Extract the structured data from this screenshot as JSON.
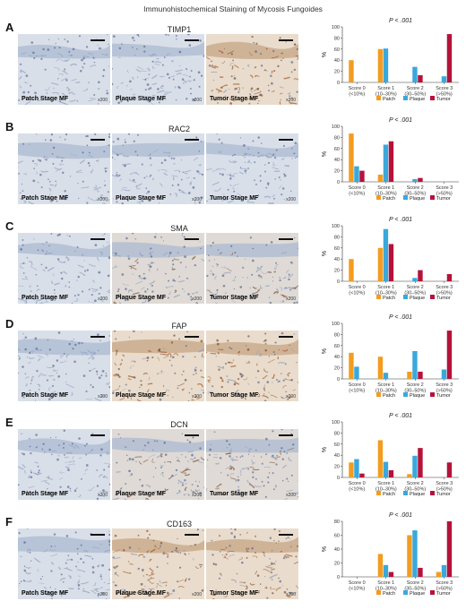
{
  "figure_title": "Immunohistochemical Staining of Mycosis Fungoides",
  "stage_labels": [
    "Patch Stage MF",
    "Plaque Stage MF",
    "Tumor Stage MF"
  ],
  "magnification": "x200",
  "colors": {
    "patch": "#f39c1e",
    "plaque": "#3aa8dc",
    "tumor": "#b5123a",
    "stain_blue": "#b9c6d9",
    "stain_brown": "#a86a3c"
  },
  "panels": [
    {
      "letter": "A",
      "marker": "TIMP1",
      "stains": [
        "blue",
        "blue",
        "brown"
      ]
    },
    {
      "letter": "B",
      "marker": "RAC2",
      "stains": [
        "blue",
        "blue",
        "blue"
      ]
    },
    {
      "letter": "C",
      "marker": "SMA",
      "stains": [
        "blue",
        "mixed",
        "mixed"
      ]
    },
    {
      "letter": "D",
      "marker": "FAP",
      "stains": [
        "blue",
        "brown",
        "brown"
      ]
    },
    {
      "letter": "E",
      "marker": "DCN",
      "stains": [
        "blue",
        "mixed",
        "mixed"
      ]
    },
    {
      "letter": "F",
      "marker": "CD163",
      "stains": [
        "blue",
        "brown",
        "brown"
      ]
    }
  ],
  "chart_data": [
    {
      "type": "bar",
      "panel": "A",
      "title": "P < .001",
      "ylabel": "%",
      "ylim": [
        0,
        100
      ],
      "yticks": [
        0,
        20,
        40,
        60,
        80,
        100
      ],
      "categories": [
        [
          "Score 0",
          "(<10%)"
        ],
        [
          "Score 1",
          "(10–30%)"
        ],
        [
          "Score 2",
          "(30–50%)"
        ],
        [
          "Score 3",
          "(>50%)"
        ]
      ],
      "legend": "bottom",
      "series": [
        {
          "name": "Patch",
          "values": [
            40,
            60,
            0,
            0
          ]
        },
        {
          "name": "Plaque",
          "values": [
            0,
            61,
            28,
            11
          ]
        },
        {
          "name": "Tumor",
          "values": [
            0,
            0,
            13,
            87
          ]
        }
      ]
    },
    {
      "type": "bar",
      "panel": "B",
      "title": "P < .001",
      "ylabel": "%",
      "ylim": [
        0,
        100
      ],
      "yticks": [
        0,
        20,
        40,
        60,
        80,
        100
      ],
      "categories": [
        [
          "Score 0",
          "(<10%)"
        ],
        [
          "Score 1",
          "(10–30%)"
        ],
        [
          "Score 2",
          "(30–50%)"
        ],
        [
          "Score 3",
          "(>50%)"
        ]
      ],
      "legend": "bottom",
      "series": [
        {
          "name": "Patch",
          "values": [
            87,
            13,
            0,
            0
          ]
        },
        {
          "name": "Plaque",
          "values": [
            28,
            67,
            5,
            0
          ]
        },
        {
          "name": "Tumor",
          "values": [
            20,
            73,
            7,
            0
          ]
        }
      ]
    },
    {
      "type": "bar",
      "panel": "C",
      "title": "P < .001",
      "ylabel": "%",
      "ylim": [
        0,
        100
      ],
      "yticks": [
        0,
        20,
        40,
        60,
        80,
        100
      ],
      "categories": [
        [
          "Score 0",
          "(<10%)"
        ],
        [
          "Score 1",
          "(10–30%)"
        ],
        [
          "Score 2",
          "(30–50%)"
        ],
        [
          "Score 3",
          "(>50%)"
        ]
      ],
      "legend": "bottom",
      "series": [
        {
          "name": "Patch",
          "values": [
            40,
            60,
            0,
            0
          ]
        },
        {
          "name": "Plaque",
          "values": [
            0,
            94,
            6,
            0
          ]
        },
        {
          "name": "Tumor",
          "values": [
            0,
            67,
            20,
            13
          ]
        }
      ]
    },
    {
      "type": "bar",
      "panel": "D",
      "title": "P < .001",
      "ylabel": "%",
      "ylim": [
        0,
        100
      ],
      "yticks": [
        0,
        20,
        40,
        60,
        80,
        100
      ],
      "categories": [
        [
          "Score 0",
          "(<10%)"
        ],
        [
          "Score 1",
          "(10–30%)"
        ],
        [
          "Score 2",
          "(30–50%)"
        ],
        [
          "Score 3",
          "(>50%)"
        ]
      ],
      "legend": "bottom",
      "series": [
        {
          "name": "Patch",
          "values": [
            47,
            40,
            13,
            0
          ]
        },
        {
          "name": "Plaque",
          "values": [
            22,
            11,
            50,
            17
          ]
        },
        {
          "name": "Tumor",
          "values": [
            0,
            0,
            13,
            87
          ]
        }
      ]
    },
    {
      "type": "bar",
      "panel": "E",
      "title": "P < .001",
      "ylabel": "%",
      "ylim": [
        0,
        100
      ],
      "yticks": [
        0,
        20,
        40,
        60,
        80,
        100
      ],
      "categories": [
        [
          "Score 0",
          "(<10%)"
        ],
        [
          "Score 1",
          "(10–30%)"
        ],
        [
          "Score 2",
          "(30–50%)"
        ],
        [
          "Score 3",
          "(>50%)"
        ]
      ],
      "legend": "bottom",
      "series": [
        {
          "name": "Patch",
          "values": [
            27,
            67,
            6,
            0
          ]
        },
        {
          "name": "Plaque",
          "values": [
            33,
            28,
            39,
            0
          ]
        },
        {
          "name": "Tumor",
          "values": [
            7,
            13,
            53,
            27
          ]
        }
      ]
    },
    {
      "type": "bar",
      "panel": "F",
      "title": "P < .001",
      "ylabel": "%",
      "ylim": [
        0,
        80
      ],
      "yticks": [
        0,
        20,
        40,
        60,
        80
      ],
      "categories": [
        [
          "Score 0",
          "(<10%)"
        ],
        [
          "Score 1",
          "(10–30%)"
        ],
        [
          "Score 2",
          "(30–50%)"
        ],
        [
          "Score 3",
          "(>50%)"
        ]
      ],
      "legend": "bottom",
      "series": [
        {
          "name": "Patch",
          "values": [
            0,
            33,
            60,
            7
          ]
        },
        {
          "name": "Plaque",
          "values": [
            0,
            17,
            67,
            17
          ]
        },
        {
          "name": "Tumor",
          "values": [
            0,
            7,
            13,
            80
          ]
        }
      ]
    }
  ]
}
